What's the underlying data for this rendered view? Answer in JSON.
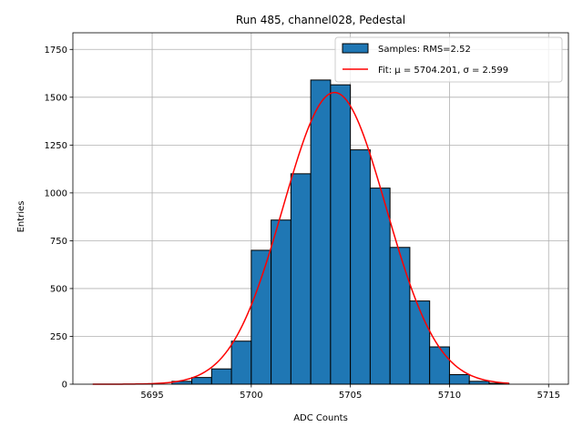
{
  "chart_data": {
    "type": "histogram",
    "title": "Run 485, channel028, Pedestal",
    "xlabel": "ADC Counts",
    "ylabel": "Entries",
    "xlim": [
      5691,
      5716
    ],
    "ylim": [
      0,
      1837
    ],
    "xticks": [
      5695,
      5700,
      5705,
      5710,
      5715
    ],
    "yticks": [
      0,
      250,
      500,
      750,
      1000,
      1250,
      1500,
      1750
    ],
    "grid": true,
    "legend_position": "top-right",
    "bar_color": "#1f77b4",
    "fit_color": "#ff0000",
    "bins": [
      {
        "x": 5696,
        "count": 15
      },
      {
        "x": 5697,
        "count": 35
      },
      {
        "x": 5698,
        "count": 80
      },
      {
        "x": 5699,
        "count": 225
      },
      {
        "x": 5700,
        "count": 700
      },
      {
        "x": 5701,
        "count": 858
      },
      {
        "x": 5702,
        "count": 1100
      },
      {
        "x": 5703,
        "count": 1590
      },
      {
        "x": 5704,
        "count": 1565
      },
      {
        "x": 5705,
        "count": 1225
      },
      {
        "x": 5706,
        "count": 1025
      },
      {
        "x": 5707,
        "count": 715
      },
      {
        "x": 5708,
        "count": 435
      },
      {
        "x": 5709,
        "count": 195
      },
      {
        "x": 5710,
        "count": 50
      },
      {
        "x": 5711,
        "count": 15
      },
      {
        "x": 5712,
        "count": 5
      }
    ],
    "fit": {
      "mu": 5704.201,
      "sigma": 2.599,
      "amplitude": 1525,
      "x_range": [
        5692,
        5713
      ]
    },
    "legend": [
      {
        "label": "Samples: RMS=2.52",
        "kind": "patch"
      },
      {
        "label": "Fit: μ = 5704.201, σ = 2.599",
        "kind": "line"
      }
    ]
  }
}
